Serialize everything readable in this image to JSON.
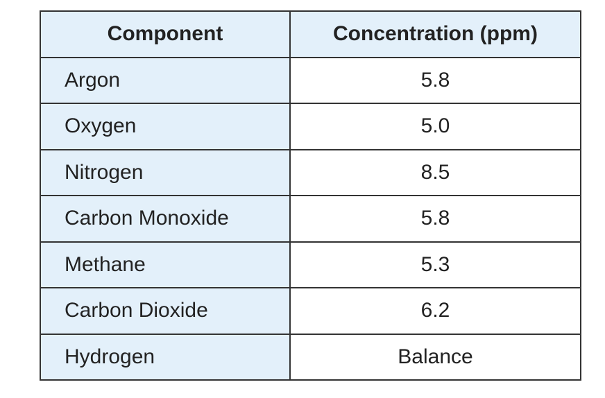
{
  "table": {
    "header": [
      "Component",
      "Concentration (ppm)"
    ],
    "rows": [
      [
        "Argon",
        "5.8"
      ],
      [
        "Oxygen",
        "5.0"
      ],
      [
        "Nitrogen",
        "8.5"
      ],
      [
        "Carbon Monoxide",
        "5.8"
      ],
      [
        "Methane",
        "5.3"
      ],
      [
        "Carbon Dioxide",
        "6.2"
      ],
      [
        "Hydrogen",
        "Balance"
      ]
    ]
  }
}
